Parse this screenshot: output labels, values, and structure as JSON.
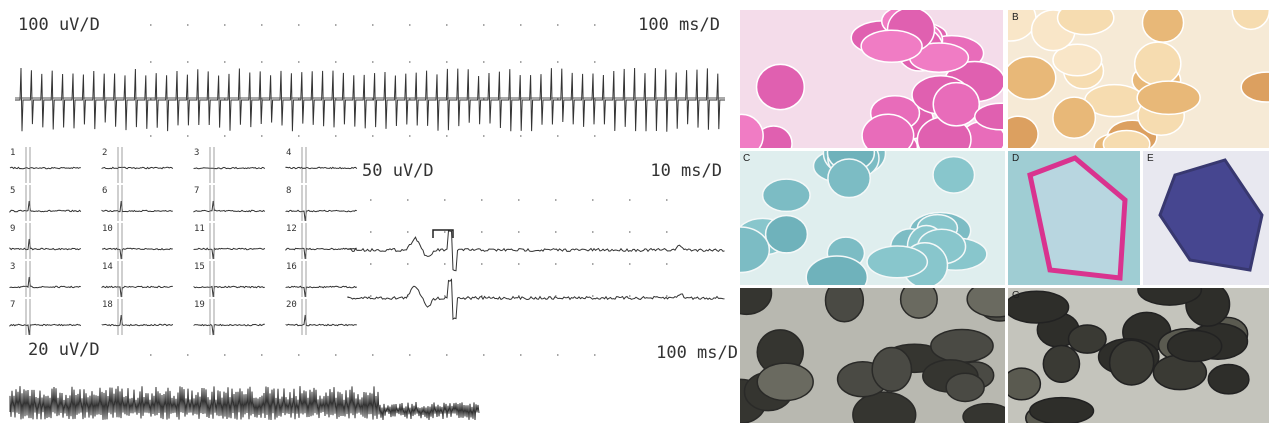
{
  "emg": {
    "top": {
      "amplitude_scale": "100 uV/D",
      "time_scale": "100 ms/D"
    },
    "grid_labels": [
      "1",
      "2",
      "3",
      "4",
      "5",
      "6",
      "7",
      "8",
      "9",
      "10",
      "11",
      "12",
      "3",
      "14",
      "15",
      "16",
      "7",
      "18",
      "19",
      "20"
    ],
    "detail": {
      "amplitude_scale": "50 uV/D",
      "time_scale": "10 ms/D"
    },
    "bottom": {
      "amplitude_scale": "20 uV/D",
      "time_scale": "100 ms/D"
    }
  },
  "histology": {
    "panel_labels": [
      "B",
      "C",
      "D",
      "E",
      "G"
    ]
  }
}
